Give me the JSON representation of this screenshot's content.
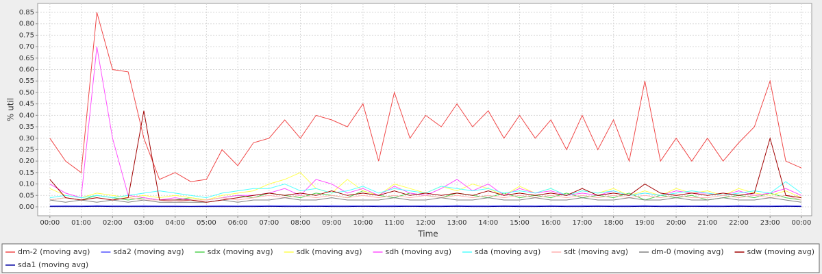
{
  "chart_data": {
    "type": "line",
    "xlabel": "Time",
    "ylabel": "% util",
    "x": [
      0,
      0.5,
      1,
      1.5,
      2,
      2.5,
      3,
      3.5,
      4,
      4.5,
      5,
      5.5,
      6,
      6.5,
      7,
      7.5,
      8,
      8.5,
      9,
      9.5,
      10,
      10.5,
      11,
      11.5,
      12,
      12.5,
      13,
      13.5,
      14,
      14.5,
      15,
      15.5,
      16,
      16.5,
      17,
      17.5,
      18,
      18.5,
      19,
      19.5,
      20,
      20.5,
      21,
      21.5,
      22,
      22.5,
      23,
      23.5,
      24
    ],
    "xlim": [
      -0.39,
      24.33
    ],
    "xticks": [
      {
        "value": 0,
        "label": "00:00"
      },
      {
        "value": 1,
        "label": "01:00"
      },
      {
        "value": 2,
        "label": "02:00"
      },
      {
        "value": 3,
        "label": "03:00"
      },
      {
        "value": 4,
        "label": "04:00"
      },
      {
        "value": 5,
        "label": "05:00"
      },
      {
        "value": 6,
        "label": "06:00"
      },
      {
        "value": 7,
        "label": "07:00"
      },
      {
        "value": 8,
        "label": "08:00"
      },
      {
        "value": 9,
        "label": "09:00"
      },
      {
        "value": 10,
        "label": "10:00"
      },
      {
        "value": 11,
        "label": "11:00"
      },
      {
        "value": 12,
        "label": "12:00"
      },
      {
        "value": 13,
        "label": "13:00"
      },
      {
        "value": 14,
        "label": "14:00"
      },
      {
        "value": 15,
        "label": "15:00"
      },
      {
        "value": 16,
        "label": "16:00"
      },
      {
        "value": 17,
        "label": "17:00"
      },
      {
        "value": 18,
        "label": "18:00"
      },
      {
        "value": 19,
        "label": "19:00"
      },
      {
        "value": 20,
        "label": "20:00"
      },
      {
        "value": 21,
        "label": "21:00"
      },
      {
        "value": 22,
        "label": "22:00"
      },
      {
        "value": 23,
        "label": "23:00"
      },
      {
        "value": 24,
        "label": "00:00"
      }
    ],
    "ylim": [
      -0.039,
      0.889
    ],
    "yticks": [
      {
        "value": 0,
        "label": "0.00"
      },
      {
        "value": 0.05,
        "label": "0.05"
      },
      {
        "value": 0.1,
        "label": "0.10"
      },
      {
        "value": 0.15,
        "label": "0.15"
      },
      {
        "value": 0.2,
        "label": "0.20"
      },
      {
        "value": 0.25,
        "label": "0.25"
      },
      {
        "value": 0.3,
        "label": "0.30"
      },
      {
        "value": 0.35,
        "label": "0.35"
      },
      {
        "value": 0.4,
        "label": "0.40"
      },
      {
        "value": 0.45,
        "label": "0.45"
      },
      {
        "value": 0.5,
        "label": "0.50"
      },
      {
        "value": 0.55,
        "label": "0.55"
      },
      {
        "value": 0.6,
        "label": "0.60"
      },
      {
        "value": 0.65,
        "label": "0.65"
      },
      {
        "value": 0.7,
        "label": "0.70"
      },
      {
        "value": 0.75,
        "label": "0.75"
      },
      {
        "value": 0.8,
        "label": "0.80"
      },
      {
        "value": 0.85,
        "label": "0.85"
      }
    ],
    "grid": true,
    "series": [
      {
        "name": "dm-2 (moving avg)",
        "color": "#f04848",
        "values": [
          0.3,
          0.2,
          0.15,
          0.85,
          0.6,
          0.59,
          0.3,
          0.12,
          0.15,
          0.11,
          0.12,
          0.25,
          0.18,
          0.28,
          0.3,
          0.38,
          0.3,
          0.4,
          0.38,
          0.35,
          0.45,
          0.2,
          0.5,
          0.3,
          0.4,
          0.35,
          0.45,
          0.35,
          0.42,
          0.3,
          0.4,
          0.3,
          0.38,
          0.25,
          0.4,
          0.25,
          0.38,
          0.2,
          0.55,
          0.2,
          0.3,
          0.2,
          0.3,
          0.2,
          0.28,
          0.35,
          0.55,
          0.2,
          0.17
        ]
      },
      {
        "name": "sda2 (moving avg)",
        "color": "#5050ff",
        "values": [
          0.004,
          0.005,
          0.004,
          0.006,
          0.005,
          0.004,
          0.005,
          0.004,
          0.004,
          0.003,
          0.004,
          0.005,
          0.004,
          0.005,
          0.005,
          0.006,
          0.005,
          0.004,
          0.006,
          0.005,
          0.004,
          0.005,
          0.006,
          0.004,
          0.005,
          0.004,
          0.006,
          0.005,
          0.004,
          0.005,
          0.006,
          0.004,
          0.005,
          0.004,
          0.006,
          0.005,
          0.004,
          0.005,
          0.006,
          0.004,
          0.005,
          0.004,
          0.005,
          0.004,
          0.006,
          0.005,
          0.004,
          0.005,
          0.004
        ]
      },
      {
        "name": "sdx (moving avg)",
        "color": "#50d050",
        "values": [
          0.03,
          0.04,
          0.03,
          0.05,
          0.04,
          0.03,
          0.04,
          0.03,
          0.03,
          0.04,
          0.03,
          0.04,
          0.05,
          0.04,
          0.06,
          0.05,
          0.04,
          0.06,
          0.05,
          0.04,
          0.07,
          0.05,
          0.04,
          0.06,
          0.05,
          0.04,
          0.06,
          0.05,
          0.04,
          0.06,
          0.04,
          0.05,
          0.04,
          0.06,
          0.04,
          0.05,
          0.04,
          0.06,
          0.03,
          0.05,
          0.04,
          0.05,
          0.03,
          0.04,
          0.05,
          0.04,
          0.06,
          0.04,
          0.03
        ]
      },
      {
        "name": "sdk (moving avg)",
        "color": "#ffff50",
        "values": [
          0.08,
          0.05,
          0.04,
          0.06,
          0.05,
          0.04,
          0.05,
          0.04,
          0.05,
          0.04,
          0.03,
          0.05,
          0.06,
          0.07,
          0.1,
          0.12,
          0.15,
          0.08,
          0.06,
          0.12,
          0.07,
          0.05,
          0.1,
          0.08,
          0.06,
          0.09,
          0.07,
          0.1,
          0.08,
          0.05,
          0.09,
          0.06,
          0.08,
          0.05,
          0.07,
          0.06,
          0.08,
          0.05,
          0.07,
          0.05,
          0.08,
          0.06,
          0.07,
          0.05,
          0.08,
          0.06,
          0.05,
          0.07,
          0.04
        ]
      },
      {
        "name": "sdh (moving avg)",
        "color": "#ff50ff",
        "values": [
          0.1,
          0.06,
          0.04,
          0.7,
          0.3,
          0.05,
          0.04,
          0.03,
          0.04,
          0.03,
          0.03,
          0.04,
          0.05,
          0.05,
          0.06,
          0.08,
          0.05,
          0.12,
          0.1,
          0.06,
          0.08,
          0.05,
          0.09,
          0.06,
          0.05,
          0.08,
          0.12,
          0.07,
          0.1,
          0.05,
          0.08,
          0.06,
          0.07,
          0.05,
          0.06,
          0.05,
          0.07,
          0.05,
          0.06,
          0.05,
          0.07,
          0.06,
          0.06,
          0.05,
          0.07,
          0.05,
          0.06,
          0.08,
          0.05
        ]
      },
      {
        "name": "sda (moving avg)",
        "color": "#50ffff",
        "values": [
          0.04,
          0.05,
          0.04,
          0.05,
          0.04,
          0.05,
          0.06,
          0.07,
          0.06,
          0.05,
          0.04,
          0.06,
          0.07,
          0.08,
          0.08,
          0.1,
          0.07,
          0.08,
          0.06,
          0.07,
          0.09,
          0.06,
          0.08,
          0.07,
          0.06,
          0.09,
          0.08,
          0.07,
          0.08,
          0.06,
          0.07,
          0.06,
          0.08,
          0.05,
          0.07,
          0.06,
          0.07,
          0.05,
          0.06,
          0.05,
          0.06,
          0.07,
          0.06,
          0.05,
          0.06,
          0.07,
          0.06,
          0.11,
          0.06
        ]
      },
      {
        "name": "sdt (moving avg)",
        "color": "#ffb0b0",
        "values": [
          0.03,
          0.04,
          0.03,
          0.04,
          0.03,
          0.04,
          0.03,
          0.03,
          0.02,
          0.03,
          0.03,
          0.04,
          0.03,
          0.04,
          0.05,
          0.04,
          0.05,
          0.04,
          0.05,
          0.04,
          0.05,
          0.04,
          0.05,
          0.04,
          0.05,
          0.04,
          0.05,
          0.04,
          0.05,
          0.04,
          0.05,
          0.04,
          0.05,
          0.04,
          0.05,
          0.04,
          0.05,
          0.04,
          0.05,
          0.04,
          0.05,
          0.04,
          0.04,
          0.05,
          0.04,
          0.05,
          0.04,
          0.05,
          0.03
        ]
      },
      {
        "name": "dm-0 (moving avg)",
        "color": "#808080",
        "values": [
          0.03,
          0.02,
          0.03,
          0.02,
          0.03,
          0.02,
          0.03,
          0.02,
          0.02,
          0.02,
          0.02,
          0.03,
          0.02,
          0.03,
          0.03,
          0.04,
          0.03,
          0.03,
          0.04,
          0.03,
          0.03,
          0.03,
          0.04,
          0.03,
          0.03,
          0.04,
          0.03,
          0.03,
          0.04,
          0.03,
          0.03,
          0.04,
          0.03,
          0.03,
          0.04,
          0.03,
          0.03,
          0.04,
          0.03,
          0.03,
          0.04,
          0.03,
          0.03,
          0.04,
          0.03,
          0.03,
          0.04,
          0.03,
          0.02
        ]
      },
      {
        "name": "sdw (moving avg)",
        "color": "#a00000",
        "values": [
          0.12,
          0.04,
          0.03,
          0.04,
          0.03,
          0.04,
          0.42,
          0.03,
          0.03,
          0.03,
          0.02,
          0.03,
          0.04,
          0.05,
          0.06,
          0.05,
          0.06,
          0.05,
          0.07,
          0.05,
          0.06,
          0.05,
          0.07,
          0.05,
          0.06,
          0.05,
          0.06,
          0.05,
          0.07,
          0.05,
          0.06,
          0.05,
          0.06,
          0.05,
          0.08,
          0.05,
          0.06,
          0.05,
          0.1,
          0.06,
          0.05,
          0.06,
          0.05,
          0.06,
          0.05,
          0.06,
          0.3,
          0.05,
          0.04
        ]
      },
      {
        "name": "sda1 (moving avg)",
        "color": "#0000a0",
        "values": [
          0.001,
          0.001,
          0.001,
          0.002,
          0.001,
          0.001,
          0.001,
          0.001,
          0.001,
          0.001,
          0.001,
          0.001,
          0.001,
          0.001,
          0.002,
          0.001,
          0.001,
          0.002,
          0.001,
          0.001,
          0.002,
          0.001,
          0.001,
          0.002,
          0.001,
          0.001,
          0.002,
          0.001,
          0.001,
          0.002,
          0.001,
          0.001,
          0.002,
          0.001,
          0.001,
          0.002,
          0.001,
          0.001,
          0.002,
          0.001,
          0.001,
          0.002,
          0.001,
          0.001,
          0.002,
          0.001,
          0.001,
          0.002,
          0.001
        ]
      }
    ]
  }
}
